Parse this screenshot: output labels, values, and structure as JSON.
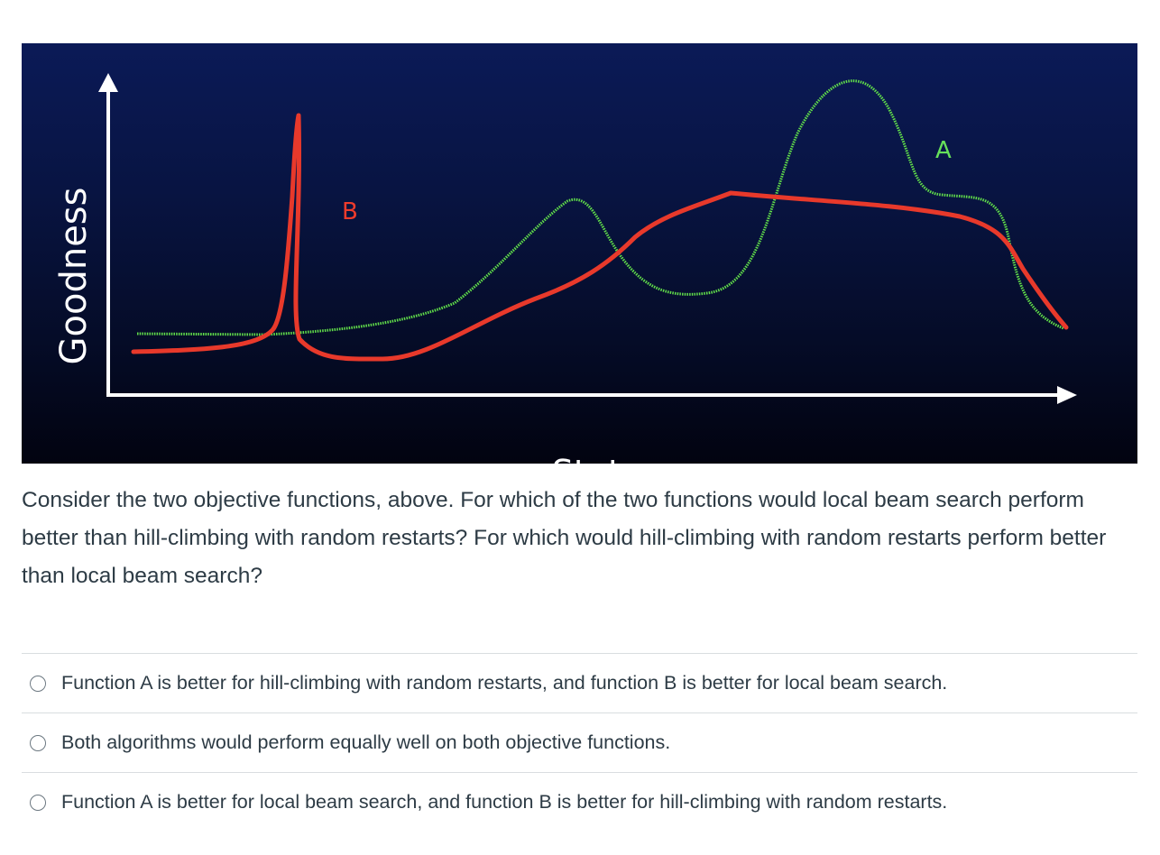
{
  "figure": {
    "y_axis_label": "Goodness",
    "x_axis_label": "State",
    "curve_a_label": "A",
    "curve_b_label": "B",
    "colors": {
      "curve_a": "#62e04a",
      "curve_b": "#e8392b",
      "axis": "#ffffff"
    }
  },
  "question": {
    "text": "Consider the two objective functions, above. For which of the two functions would local beam search perform better than hill-climbing with random restarts? For which would hill-climbing with random restarts perform better than local beam search?"
  },
  "answers": [
    {
      "label": "Function A is better for hill-climbing with random restarts, and function B is better for local beam search.",
      "selected": false
    },
    {
      "label": "Both algorithms would perform equally well on both objective functions.",
      "selected": false
    },
    {
      "label": "Function A is better for local beam search, and function B is better for hill-climbing with random restarts.",
      "selected": false
    }
  ]
}
